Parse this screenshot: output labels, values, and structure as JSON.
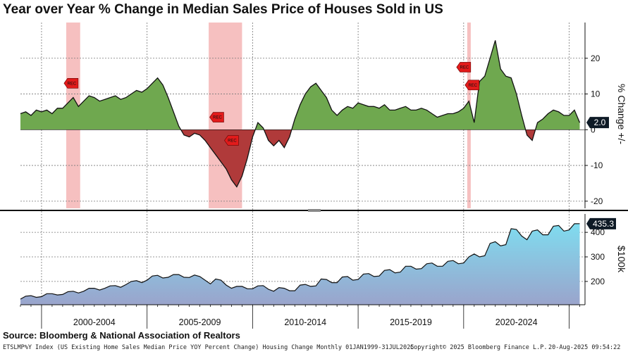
{
  "title": "Year over Year % Change in Median Sales Price of Houses Sold in US",
  "source": "Source: Bloomberg & National Association of Realtors",
  "footer": {
    "left": "ETSLMP%Y Index (US Existing Home Sales Median Price YOY Percent Change) Housing Change  Monthly 01JAN1999-31JUL2025",
    "mid": "Copyright© 2025 Bloomberg Finance L.P.",
    "right": "20-Aug-2025 09:54:22"
  },
  "colors": {
    "positive_fill": "#6fa84f",
    "negative_fill": "#b03a3a",
    "recession_band": "#f5b5b5",
    "level_fill_top": "#7fdcef",
    "level_fill_bottom": "#9aa4cc",
    "badge_bg": "#0e1a26"
  },
  "chart_data": [
    {
      "type": "area",
      "title": "Year over Year % Change in Median Sales Price of Houses Sold in US",
      "ylabel": "% Change +/-",
      "ylim": [
        -22,
        30
      ],
      "yticks": [
        -20,
        -10,
        0,
        10,
        20
      ],
      "xlim": [
        1999.0,
        2025.75
      ],
      "last_value_label": "2.0",
      "recession_shading": [
        [
          2001.17,
          2001.83
        ],
        [
          2007.92,
          2009.5
        ],
        [
          2020.17,
          2020.33
        ]
      ],
      "rec_markers": [
        {
          "x": 2001.4,
          "y": 13
        },
        {
          "x": 2008.3,
          "y": 3.5
        },
        {
          "x": 2009.0,
          "y": -3
        },
        {
          "x": 2020.0,
          "y": 17.5
        },
        {
          "x": 2020.4,
          "y": 12.5
        }
      ],
      "series": [
        {
          "x": [
            1999.0,
            1999.25,
            1999.5,
            1999.75,
            2000.0,
            2000.25,
            2000.5,
            2000.75,
            2001.0,
            2001.25,
            2001.5,
            2001.75,
            2002.0,
            2002.25,
            2002.5,
            2002.75,
            2003.0,
            2003.25,
            2003.5,
            2003.75,
            2004.0,
            2004.25,
            2004.5,
            2004.75,
            2005.0,
            2005.25,
            2005.5,
            2005.75,
            2006.0,
            2006.25,
            2006.5,
            2006.75,
            2007.0,
            2007.25,
            2007.5,
            2007.75,
            2008.0,
            2008.25,
            2008.5,
            2008.75,
            2009.0,
            2009.25,
            2009.5,
            2009.75,
            2010.0,
            2010.25,
            2010.5,
            2010.75,
            2011.0,
            2011.25,
            2011.5,
            2011.75,
            2012.0,
            2012.25,
            2012.5,
            2012.75,
            2013.0,
            2013.25,
            2013.5,
            2013.75,
            2014.0,
            2014.25,
            2014.5,
            2014.75,
            2015.0,
            2015.25,
            2015.5,
            2015.75,
            2016.0,
            2016.25,
            2016.5,
            2016.75,
            2017.0,
            2017.25,
            2017.5,
            2017.75,
            2018.0,
            2018.25,
            2018.5,
            2018.75,
            2019.0,
            2019.25,
            2019.5,
            2019.75,
            2020.0,
            2020.25,
            2020.5,
            2020.75,
            2021.0,
            2021.25,
            2021.5,
            2021.75,
            2022.0,
            2022.25,
            2022.5,
            2022.75,
            2023.0,
            2023.25,
            2023.5,
            2023.75,
            2024.0,
            2024.25,
            2024.5,
            2024.75,
            2025.0,
            2025.25,
            2025.5
          ],
          "values": [
            4.5,
            5.0,
            4.0,
            5.5,
            5.0,
            5.5,
            4.5,
            6.0,
            6.0,
            7.5,
            9.0,
            6.5,
            8.0,
            9.5,
            9.0,
            8.0,
            8.5,
            9.0,
            9.5,
            8.5,
            9.0,
            10.0,
            11.0,
            10.5,
            11.5,
            13.0,
            14.5,
            12.5,
            9.0,
            5.0,
            1.0,
            -1.5,
            -2.0,
            -1.0,
            -1.5,
            -3.0,
            -5.0,
            -7.0,
            -9.0,
            -11.0,
            -14.0,
            -16.0,
            -13.0,
            -8.0,
            -2.0,
            2.0,
            0.5,
            -3.0,
            -4.5,
            -3.0,
            -5.0,
            -2.0,
            3.0,
            7.0,
            10.0,
            12.0,
            13.0,
            11.0,
            9.0,
            5.5,
            4.0,
            5.5,
            6.5,
            6.0,
            7.5,
            7.0,
            6.5,
            6.5,
            6.0,
            7.0,
            5.5,
            5.5,
            6.0,
            6.5,
            5.5,
            5.5,
            6.0,
            5.5,
            4.5,
            3.5,
            4.0,
            4.5,
            4.5,
            5.0,
            6.0,
            8.0,
            2.0,
            13.5,
            15.0,
            20.0,
            25.0,
            17.0,
            15.0,
            14.5,
            10.0,
            4.0,
            -1.5,
            -3.0,
            2.0,
            3.0,
            4.5,
            5.5,
            5.0,
            4.0,
            4.0,
            5.5,
            2.0
          ]
        }
      ]
    },
    {
      "type": "area",
      "ylabel": "$100k",
      "ylim": [
        105,
        475
      ],
      "yticks": [
        200,
        300,
        400
      ],
      "xlim": [
        1999.0,
        2025.75
      ],
      "last_value_label": "435.3",
      "xtick_labels": [
        "2000-2004",
        "2005-2009",
        "2010-2014",
        "2015-2019",
        "2020-2024"
      ],
      "series": [
        {
          "x": [
            1999.0,
            1999.25,
            1999.5,
            1999.75,
            2000.0,
            2000.25,
            2000.5,
            2000.75,
            2001.0,
            2001.25,
            2001.5,
            2001.75,
            2002.0,
            2002.25,
            2002.5,
            2002.75,
            2003.0,
            2003.25,
            2003.5,
            2003.75,
            2004.0,
            2004.25,
            2004.5,
            2004.75,
            2005.0,
            2005.25,
            2005.5,
            2005.75,
            2006.0,
            2006.25,
            2006.5,
            2006.75,
            2007.0,
            2007.25,
            2007.5,
            2007.75,
            2008.0,
            2008.25,
            2008.5,
            2008.75,
            2009.0,
            2009.25,
            2009.5,
            2009.75,
            2010.0,
            2010.25,
            2010.5,
            2010.75,
            2011.0,
            2011.25,
            2011.5,
            2011.75,
            2012.0,
            2012.25,
            2012.5,
            2012.75,
            2013.0,
            2013.25,
            2013.5,
            2013.75,
            2014.0,
            2014.25,
            2014.5,
            2014.75,
            2015.0,
            2015.25,
            2015.5,
            2015.75,
            2016.0,
            2016.25,
            2016.5,
            2016.75,
            2017.0,
            2017.25,
            2017.5,
            2017.75,
            2018.0,
            2018.25,
            2018.5,
            2018.75,
            2019.0,
            2019.25,
            2019.5,
            2019.75,
            2020.0,
            2020.25,
            2020.5,
            2020.75,
            2021.0,
            2021.25,
            2021.5,
            2021.75,
            2022.0,
            2022.25,
            2022.5,
            2022.75,
            2023.0,
            2023.25,
            2023.5,
            2023.75,
            2024.0,
            2024.25,
            2024.5,
            2024.75,
            2025.0,
            2025.25,
            2025.5
          ],
          "values": [
            128,
            140,
            142,
            135,
            138,
            150,
            150,
            145,
            147,
            158,
            160,
            153,
            160,
            172,
            172,
            165,
            172,
            182,
            183,
            176,
            187,
            200,
            203,
            195,
            205,
            222,
            225,
            214,
            217,
            228,
            228,
            217,
            216,
            226,
            220,
            205,
            190,
            210,
            205,
            185,
            172,
            180,
            180,
            170,
            170,
            182,
            183,
            168,
            160,
            175,
            172,
            162,
            162,
            185,
            188,
            180,
            182,
            210,
            208,
            195,
            195,
            218,
            220,
            205,
            208,
            230,
            232,
            220,
            222,
            245,
            248,
            235,
            238,
            262,
            262,
            250,
            252,
            272,
            275,
            262,
            262,
            282,
            285,
            272,
            275,
            300,
            312,
            300,
            305,
            355,
            362,
            345,
            350,
            415,
            412,
            385,
            370,
            405,
            410,
            390,
            390,
            425,
            428,
            405,
            410,
            435,
            435.3
          ]
        }
      ]
    }
  ]
}
